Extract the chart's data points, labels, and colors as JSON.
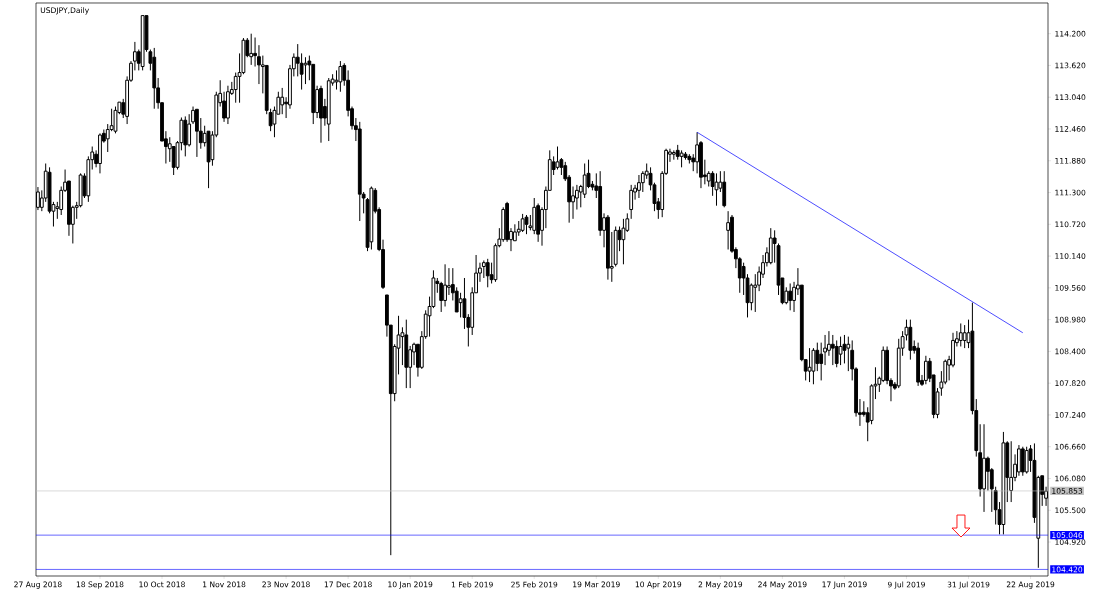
{
  "chart_data": {
    "type": "candlestick",
    "title": "USDJPY,Daily",
    "categories": [
      "27 Aug 2018",
      null,
      null,
      null,
      null,
      null,
      null,
      null,
      null,
      null,
      null,
      null,
      null,
      null,
      null,
      null,
      "18 Sep 2018",
      null,
      null,
      null,
      null,
      null,
      null,
      null,
      null,
      null,
      null,
      null,
      null,
      null,
      null,
      null,
      "10 Oct 2018",
      null,
      null,
      null,
      null,
      null,
      null,
      null,
      null,
      null,
      null,
      null,
      null,
      null,
      null,
      null,
      "1 Nov 2018",
      null,
      null,
      null,
      null,
      null,
      null,
      null,
      null,
      null,
      null,
      null,
      null,
      null,
      null,
      null,
      "23 Nov 2018",
      null,
      null,
      null,
      null,
      null,
      null,
      null,
      null,
      null,
      null,
      null,
      null,
      null,
      null,
      null,
      "17 Dec 2018",
      null,
      null,
      null,
      null,
      null,
      null,
      null,
      null,
      null,
      null,
      null,
      null,
      null,
      null,
      null,
      "10 Jan 2019",
      null,
      null,
      null,
      null,
      null,
      null,
      null,
      null,
      null,
      null,
      null,
      null,
      null,
      null,
      null,
      "1 Feb 2019",
      null,
      null,
      null,
      null,
      null,
      null,
      null,
      null,
      null,
      null,
      null,
      null,
      null,
      null,
      null,
      "25 Feb 2019",
      null,
      null,
      null,
      null,
      null,
      null,
      null,
      null,
      null,
      null,
      null,
      null,
      null,
      null,
      null,
      "19 Mar 2019",
      null,
      null,
      null,
      null,
      null,
      null,
      null,
      null,
      null,
      null,
      null,
      null,
      null,
      null,
      null,
      "10 Apr 2019",
      null,
      null,
      null,
      null,
      null,
      null,
      null,
      null,
      null,
      null,
      null,
      null,
      null,
      null,
      null,
      "2 May 2019",
      null,
      null,
      null,
      null,
      null,
      null,
      null,
      null,
      null,
      null,
      null,
      null,
      null,
      null,
      null,
      "24 May 2019",
      null,
      null,
      null,
      null,
      null,
      null,
      null,
      null,
      null,
      null,
      null,
      null,
      null,
      null,
      null,
      "17 Jun 2019",
      null,
      null,
      null,
      null,
      null,
      null,
      null,
      null,
      null,
      null,
      null,
      null,
      null,
      null,
      null,
      "9 Jul 2019",
      null,
      null,
      null,
      null,
      null,
      null,
      null,
      null,
      null,
      null,
      null,
      null,
      null,
      null,
      null,
      "31 Jul 2019",
      null,
      null,
      null,
      null,
      null,
      null,
      null,
      null,
      null,
      null,
      null,
      null,
      null,
      null,
      null,
      "22 Aug 2019",
      null,
      null,
      null,
      null
    ],
    "ohlc": [
      [
        111.03,
        111.4,
        110.98,
        111.31
      ],
      [
        111.03,
        111.34,
        110.96,
        111.2
      ],
      [
        111.2,
        111.83,
        111.13,
        111.69
      ],
      [
        111.67,
        111.76,
        110.92,
        110.96
      ],
      [
        110.96,
        111.13,
        110.68,
        111.08
      ],
      [
        111.01,
        111.13,
        110.82,
        111.04
      ],
      [
        110.99,
        111.41,
        110.89,
        111.34
      ],
      [
        111.34,
        111.72,
        111.31,
        111.49
      ],
      [
        111.51,
        111.51,
        110.51,
        110.72
      ],
      [
        110.72,
        111.06,
        110.37,
        111.03
      ],
      [
        111.03,
        111.13,
        110.82,
        111.06
      ],
      [
        111.06,
        111.65,
        111.03,
        111.62
      ],
      [
        111.6,
        111.65,
        111.2,
        111.24
      ],
      [
        111.24,
        111.96,
        111.13,
        111.9
      ],
      [
        111.9,
        112.14,
        111.72,
        112.04
      ],
      [
        112.0,
        112.07,
        111.76,
        111.83
      ],
      [
        111.83,
        112.38,
        111.65,
        112.35
      ],
      [
        112.38,
        112.45,
        112.21,
        112.24
      ],
      [
        112.28,
        112.55,
        112.04,
        112.45
      ],
      [
        112.45,
        112.83,
        112.42,
        112.52
      ],
      [
        112.42,
        112.87,
        112.38,
        112.8
      ],
      [
        112.76,
        112.95,
        112.73,
        112.95
      ],
      [
        112.94,
        113.01,
        112.66,
        112.73
      ],
      [
        112.69,
        113.42,
        112.55,
        113.35
      ],
      [
        113.35,
        113.7,
        113.32,
        113.66
      ],
      [
        113.7,
        114.05,
        113.53,
        113.87
      ],
      [
        113.87,
        113.91,
        113.53,
        113.66
      ],
      [
        113.6,
        114.53,
        113.53,
        114.53
      ],
      [
        114.53,
        114.53,
        113.87,
        113.91
      ],
      [
        113.87,
        113.91,
        113.53,
        113.66
      ],
      [
        113.77,
        113.94,
        112.83,
        113.21
      ],
      [
        113.21,
        113.39,
        112.83,
        112.94
      ],
      [
        112.94,
        112.94,
        112.24,
        112.24
      ],
      [
        112.28,
        112.42,
        111.83,
        112.14
      ],
      [
        112.1,
        112.31,
        111.86,
        112.19
      ],
      [
        112.14,
        112.14,
        111.62,
        111.76
      ],
      [
        111.76,
        112.24,
        111.72,
        112.21
      ],
      [
        112.21,
        112.67,
        112.07,
        112.62
      ],
      [
        112.62,
        112.69,
        111.96,
        112.17
      ],
      [
        112.17,
        112.73,
        112.14,
        112.55
      ],
      [
        112.59,
        112.87,
        112.55,
        112.8
      ],
      [
        112.82,
        112.82,
        111.95,
        112.42
      ],
      [
        112.42,
        112.66,
        112.1,
        112.21
      ],
      [
        112.21,
        112.52,
        112.14,
        112.38
      ],
      [
        112.42,
        112.42,
        111.38,
        111.86
      ],
      [
        111.9,
        112.42,
        111.79,
        112.35
      ],
      [
        112.35,
        113.14,
        112.31,
        113.08
      ],
      [
        112.94,
        113.35,
        112.87,
        113.11
      ],
      [
        112.97,
        113.14,
        112.59,
        112.66
      ],
      [
        112.66,
        113.25,
        112.55,
        113.14
      ],
      [
        113.11,
        113.32,
        113.08,
        113.18
      ],
      [
        113.18,
        113.49,
        112.94,
        113.42
      ],
      [
        113.42,
        113.84,
        112.94,
        113.49
      ],
      [
        113.49,
        114.12,
        113.46,
        114.08
      ],
      [
        114.08,
        114.12,
        113.77,
        113.8
      ],
      [
        113.78,
        114.2,
        113.63,
        113.84
      ],
      [
        113.84,
        114.13,
        113.6,
        113.8
      ],
      [
        113.78,
        113.99,
        113.28,
        113.63
      ],
      [
        113.6,
        113.8,
        113.11,
        113.63
      ],
      [
        113.62,
        113.62,
        112.73,
        112.8
      ],
      [
        112.76,
        112.83,
        112.42,
        112.52
      ],
      [
        112.55,
        112.87,
        112.31,
        112.8
      ],
      [
        112.73,
        113.14,
        112.73,
        113.04
      ],
      [
        112.9,
        113.21,
        112.73,
        113.04
      ],
      [
        112.95,
        113.04,
        112.66,
        112.92
      ],
      [
        112.9,
        113.63,
        112.83,
        113.56
      ],
      [
        113.56,
        113.84,
        113.42,
        113.77
      ],
      [
        113.77,
        114.01,
        113.42,
        113.66
      ],
      [
        113.66,
        113.84,
        113.18,
        113.46
      ],
      [
        113.63,
        113.77,
        113.28,
        113.66
      ],
      [
        113.7,
        113.8,
        113.35,
        113.63
      ],
      [
        113.64,
        113.64,
        112.55,
        112.76
      ],
      [
        112.76,
        113.25,
        112.66,
        113.18
      ],
      [
        113.2,
        113.25,
        112.21,
        112.66
      ],
      [
        112.87,
        113.01,
        112.52,
        112.66
      ],
      [
        112.55,
        113.39,
        112.24,
        113.34
      ],
      [
        113.3,
        113.46,
        113.25,
        113.37
      ],
      [
        113.32,
        113.53,
        113.18,
        113.35
      ],
      [
        113.32,
        113.7,
        113.14,
        113.6
      ],
      [
        113.62,
        113.66,
        113.25,
        113.35
      ],
      [
        113.35,
        113.53,
        112.69,
        112.8
      ],
      [
        112.83,
        112.87,
        112.45,
        112.52
      ],
      [
        112.52,
        112.66,
        112.24,
        112.45
      ],
      [
        112.46,
        112.59,
        110.78,
        111.27
      ],
      [
        111.27,
        111.31,
        110.92,
        111.2
      ],
      [
        111.17,
        111.2,
        110.23,
        110.3
      ],
      [
        110.4,
        111.41,
        110.26,
        111.38
      ],
      [
        111.34,
        111.38,
        110.92,
        110.96
      ],
      [
        110.99,
        111.03,
        110.23,
        110.26
      ],
      [
        110.26,
        110.44,
        109.54,
        109.57
      ],
      [
        109.43,
        109.43,
        108.67,
        108.88
      ],
      [
        108.88,
        108.88,
        104.68,
        107.63
      ],
      [
        107.63,
        108.53,
        107.49,
        108.49
      ],
      [
        108.46,
        109.05,
        107.98,
        108.7
      ],
      [
        108.67,
        108.84,
        108.15,
        108.74
      ],
      [
        108.7,
        108.98,
        107.73,
        108.11
      ],
      [
        108.11,
        108.5,
        107.73,
        108.43
      ],
      [
        108.39,
        108.56,
        108.15,
        108.53
      ],
      [
        108.53,
        108.53,
        107.94,
        108.11
      ],
      [
        108.11,
        108.77,
        108.08,
        108.67
      ],
      [
        108.67,
        109.15,
        108.63,
        109.08
      ],
      [
        109.05,
        109.4,
        108.67,
        109.22
      ],
      [
        109.22,
        109.88,
        109.19,
        109.74
      ],
      [
        109.68,
        109.74,
        109.47,
        109.64
      ],
      [
        109.64,
        109.67,
        109.12,
        109.33
      ],
      [
        109.33,
        109.99,
        109.22,
        109.61
      ],
      [
        109.57,
        109.92,
        109.43,
        109.6
      ],
      [
        109.62,
        109.92,
        109.33,
        109.47
      ],
      [
        109.5,
        109.57,
        109.12,
        109.12
      ],
      [
        109.29,
        109.47,
        109.02,
        109.36
      ],
      [
        109.36,
        109.74,
        108.81,
        109.02
      ],
      [
        109.02,
        109.08,
        108.49,
        108.84
      ],
      [
        108.84,
        109.57,
        108.7,
        109.47
      ],
      [
        109.47,
        110.16,
        109.47,
        109.83
      ],
      [
        109.83,
        110.02,
        109.67,
        109.92
      ],
      [
        109.95,
        110.06,
        109.74,
        110.02
      ],
      [
        110.02,
        110.09,
        109.57,
        109.78
      ],
      [
        109.8,
        110.02,
        109.64,
        109.71
      ],
      [
        109.71,
        110.37,
        109.67,
        110.33
      ],
      [
        110.33,
        110.65,
        110.3,
        110.45
      ],
      [
        110.44,
        111.03,
        110.4,
        110.99
      ],
      [
        111.1,
        111.13,
        110.4,
        110.44
      ],
      [
        110.44,
        110.65,
        110.23,
        110.59
      ],
      [
        110.42,
        110.72,
        110.42,
        110.58
      ],
      [
        110.58,
        110.78,
        110.51,
        110.63
      ],
      [
        110.61,
        110.91,
        110.58,
        110.82
      ],
      [
        110.85,
        110.89,
        110.54,
        110.72
      ],
      [
        110.66,
        110.89,
        110.61,
        110.69
      ],
      [
        110.61,
        111.2,
        110.54,
        111.03
      ],
      [
        111.06,
        111.1,
        110.4,
        110.54
      ],
      [
        110.61,
        111.03,
        110.33,
        110.99
      ],
      [
        110.99,
        111.41,
        110.65,
        111.34
      ],
      [
        111.34,
        112.07,
        111.34,
        111.9
      ],
      [
        111.86,
        111.96,
        111.62,
        111.72
      ],
      [
        111.76,
        112.14,
        111.72,
        111.86
      ],
      [
        111.9,
        111.93,
        111.62,
        111.76
      ],
      [
        111.79,
        111.86,
        111.51,
        111.55
      ],
      [
        111.58,
        111.62,
        110.75,
        111.13
      ],
      [
        111.13,
        111.41,
        110.82,
        111.24
      ],
      [
        111.2,
        111.44,
        110.99,
        111.34
      ],
      [
        111.31,
        111.44,
        111.03,
        111.41
      ],
      [
        111.27,
        111.83,
        111.2,
        111.62
      ],
      [
        111.65,
        111.9,
        111.38,
        111.41
      ],
      [
        111.45,
        111.51,
        111.34,
        111.4
      ],
      [
        111.42,
        111.65,
        111.2,
        111.34
      ],
      [
        111.41,
        111.69,
        110.51,
        110.61
      ],
      [
        110.61,
        110.92,
        110.3,
        110.84
      ],
      [
        110.85,
        110.89,
        109.71,
        109.92
      ],
      [
        109.92,
        110.58,
        109.67,
        109.95
      ],
      [
        109.99,
        110.68,
        109.95,
        110.61
      ],
      [
        110.61,
        110.68,
        110.23,
        110.44
      ],
      [
        110.44,
        110.82,
        109.99,
        110.65
      ],
      [
        110.61,
        110.92,
        110.58,
        110.82
      ],
      [
        110.99,
        111.44,
        110.82,
        111.34
      ],
      [
        111.31,
        111.44,
        111.17,
        111.38
      ],
      [
        111.34,
        111.62,
        111.2,
        111.48
      ],
      [
        111.48,
        111.69,
        111.31,
        111.65
      ],
      [
        111.62,
        111.83,
        111.55,
        111.69
      ],
      [
        111.65,
        111.76,
        111.34,
        111.44
      ],
      [
        111.44,
        111.48,
        110.96,
        111.1
      ],
      [
        111.13,
        111.2,
        110.82,
        110.99
      ],
      [
        110.99,
        111.69,
        110.85,
        111.65
      ],
      [
        111.65,
        112.1,
        111.62,
        112.07
      ],
      [
        112.0,
        112.1,
        111.86,
        112.04
      ],
      [
        112.0,
        112.07,
        111.9,
        112.03
      ],
      [
        112.07,
        112.17,
        111.9,
        111.96
      ],
      [
        111.96,
        112.07,
        111.76,
        112.02
      ],
      [
        112.0,
        112.04,
        111.9,
        111.94
      ],
      [
        111.96,
        112.0,
        111.83,
        111.9
      ],
      [
        111.93,
        112.0,
        111.69,
        111.86
      ],
      [
        111.86,
        112.4,
        111.65,
        112.17
      ],
      [
        112.21,
        112.24,
        111.38,
        111.58
      ],
      [
        111.62,
        111.9,
        111.45,
        111.59
      ],
      [
        111.51,
        111.69,
        111.41,
        111.65
      ],
      [
        111.65,
        111.69,
        111.24,
        111.41
      ],
      [
        111.35,
        111.65,
        111.06,
        111.49
      ],
      [
        111.38,
        111.69,
        111.31,
        111.49
      ],
      [
        111.49,
        111.69,
        111.03,
        111.06
      ],
      [
        110.61,
        110.96,
        110.26,
        110.75
      ],
      [
        110.85,
        110.89,
        110.2,
        110.23
      ],
      [
        110.26,
        110.3,
        109.92,
        110.09
      ],
      [
        110.09,
        110.12,
        109.47,
        109.74
      ],
      [
        109.95,
        110.02,
        109.43,
        109.74
      ],
      [
        109.74,
        109.81,
        109.02,
        109.29
      ],
      [
        109.29,
        109.64,
        109.15,
        109.61
      ],
      [
        109.57,
        109.81,
        109.12,
        109.61
      ],
      [
        109.61,
        109.95,
        109.5,
        109.85
      ],
      [
        109.81,
        110.16,
        109.74,
        110.02
      ],
      [
        110.02,
        110.3,
        109.95,
        110.2
      ],
      [
        110.02,
        110.65,
        109.99,
        110.47
      ],
      [
        110.47,
        110.61,
        110.02,
        110.37
      ],
      [
        110.33,
        110.37,
        109.43,
        109.61
      ],
      [
        109.74,
        109.74,
        109.26,
        109.29
      ],
      [
        109.29,
        109.57,
        109.26,
        109.5
      ],
      [
        109.5,
        109.64,
        109.15,
        109.33
      ],
      [
        109.33,
        109.67,
        109.12,
        109.57
      ],
      [
        109.54,
        109.92,
        109.43,
        109.61
      ],
      [
        109.61,
        109.61,
        108.22,
        108.25
      ],
      [
        108.25,
        108.25,
        107.87,
        108.04
      ],
      [
        108.04,
        108.46,
        107.84,
        108.11
      ],
      [
        108.04,
        108.46,
        107.8,
        108.42
      ],
      [
        108.42,
        108.56,
        108.04,
        108.18
      ],
      [
        108.35,
        108.56,
        107.87,
        108.18
      ],
      [
        108.39,
        108.7,
        108.15,
        108.46
      ],
      [
        108.42,
        108.77,
        108.32,
        108.53
      ],
      [
        108.53,
        108.7,
        108.15,
        108.46
      ],
      [
        108.49,
        108.6,
        108.11,
        108.18
      ],
      [
        108.35,
        108.67,
        108.15,
        108.49
      ],
      [
        108.53,
        108.7,
        108.18,
        108.42
      ],
      [
        108.46,
        108.67,
        108.04,
        108.53
      ],
      [
        108.42,
        108.6,
        107.87,
        108.08
      ],
      [
        108.08,
        108.11,
        107.21,
        107.28
      ],
      [
        107.28,
        107.53,
        107.04,
        107.25
      ],
      [
        107.29,
        107.49,
        107.21,
        107.25
      ],
      [
        107.28,
        107.38,
        106.76,
        107.11
      ],
      [
        107.14,
        107.8,
        107.07,
        107.77
      ],
      [
        107.77,
        108.11,
        107.53,
        107.8
      ],
      [
        107.8,
        107.94,
        107.66,
        107.91
      ],
      [
        107.87,
        108.49,
        107.84,
        108.42
      ],
      [
        108.42,
        108.49,
        107.8,
        107.87
      ],
      [
        107.87,
        107.91,
        107.49,
        107.77
      ],
      [
        107.8,
        107.84,
        107.7,
        107.73
      ],
      [
        107.77,
        108.63,
        107.73,
        108.46
      ],
      [
        108.46,
        108.77,
        108.32,
        108.67
      ],
      [
        108.7,
        108.98,
        108.6,
        108.84
      ],
      [
        108.84,
        108.98,
        108.25,
        108.42
      ],
      [
        108.49,
        108.6,
        108.36,
        108.42
      ],
      [
        108.46,
        108.56,
        107.77,
        107.84
      ],
      [
        107.87,
        107.97,
        107.77,
        107.8
      ],
      [
        107.87,
        108.32,
        107.8,
        108.22
      ],
      [
        108.22,
        108.28,
        107.84,
        107.91
      ],
      [
        107.97,
        107.97,
        107.18,
        107.25
      ],
      [
        107.25,
        107.73,
        107.18,
        107.66
      ],
      [
        107.73,
        108.04,
        107.59,
        107.84
      ],
      [
        107.84,
        108.25,
        107.8,
        108.22
      ],
      [
        108.15,
        108.32,
        107.87,
        108.25
      ],
      [
        108.15,
        108.74,
        108.11,
        108.6
      ],
      [
        108.56,
        108.77,
        108.49,
        108.63
      ],
      [
        108.6,
        108.91,
        108.49,
        108.74
      ],
      [
        108.6,
        108.88,
        108.46,
        108.74
      ],
      [
        108.56,
        108.98,
        108.46,
        108.74
      ],
      [
        108.77,
        109.29,
        107.25,
        107.32
      ],
      [
        107.32,
        107.53,
        106.48,
        106.59
      ],
      [
        106.55,
        107.07,
        105.75,
        105.89
      ],
      [
        105.89,
        107.07,
        105.47,
        106.45
      ],
      [
        106.45,
        106.48,
        105.86,
        106.21
      ],
      [
        106.24,
        106.27,
        105.47,
        105.89
      ],
      [
        105.86,
        105.93,
        105.24,
        105.51
      ],
      [
        105.51,
        105.65,
        105.06,
        105.24
      ],
      [
        105.24,
        106.93,
        105.06,
        106.73
      ],
      [
        106.73,
        106.76,
        105.65,
        106.1
      ],
      [
        105.86,
        106.76,
        105.65,
        106.1
      ],
      [
        106.1,
        106.52,
        106.03,
        106.34
      ],
      [
        106.2,
        106.69,
        106.13,
        106.62
      ],
      [
        106.62,
        106.66,
        106.13,
        106.2
      ],
      [
        106.2,
        106.66,
        106.17,
        106.59
      ],
      [
        106.62,
        106.69,
        106.2,
        106.41
      ],
      [
        106.41,
        106.72,
        105.27,
        105.37
      ],
      [
        104.99,
        106.13,
        104.45,
        106.1
      ],
      [
        106.13,
        106.13,
        105.58,
        105.79
      ],
      [
        105.72,
        105.93,
        105.58,
        105.85
      ]
    ],
    "series": [
      {
        "type": "line",
        "color": "#0000ff",
        "values": [
          null,
          null,
          null,
          null,
          null,
          null,
          null,
          null,
          null,
          null,
          null,
          null,
          null,
          null,
          null,
          null,
          null,
          null,
          null,
          null,
          null,
          null,
          null,
          null,
          null,
          null,
          null,
          null,
          null,
          null,
          null,
          null,
          null,
          null,
          null,
          null,
          null,
          null,
          null,
          null,
          null,
          null,
          null,
          null,
          null,
          null,
          null,
          null,
          null,
          null,
          null,
          null,
          null,
          null,
          null,
          null,
          null,
          null,
          null,
          null,
          null,
          null,
          null,
          null,
          null,
          null,
          null,
          null,
          null,
          null,
          null,
          null,
          null,
          null,
          null,
          null,
          null,
          null,
          null,
          null,
          null,
          null,
          null,
          null,
          null,
          null,
          null,
          null,
          null,
          null,
          null,
          null,
          null,
          null,
          null,
          null,
          null,
          null,
          null,
          null,
          null,
          null,
          null,
          null,
          null,
          null,
          null,
          null,
          null,
          null,
          null,
          null,
          null,
          null,
          null,
          null,
          null,
          null,
          null,
          null,
          null,
          null,
          null,
          null,
          null,
          null,
          null,
          null,
          null,
          null,
          null,
          null,
          null,
          null,
          null,
          null,
          null,
          null,
          null,
          null,
          null,
          null,
          null,
          null,
          null,
          null,
          null,
          null,
          null,
          null,
          null,
          null,
          null,
          null,
          null,
          null,
          null,
          null,
          null,
          null,
          null,
          null,
          null,
          null,
          null,
          null,
          null,
          null,
          null,
          null,
          112.4,
          null,
          null,
          null,
          null,
          null,
          null,
          null,
          null,
          null,
          null,
          null,
          null,
          null,
          null,
          null,
          null,
          null,
          null,
          null,
          null,
          null,
          null,
          null,
          null,
          null,
          null,
          null,
          null,
          null,
          null,
          null,
          null,
          null,
          null,
          null,
          null,
          null,
          null,
          null,
          null,
          null,
          null,
          null,
          null,
          null,
          null,
          null,
          null,
          null,
          null,
          null,
          null,
          null,
          null,
          null,
          null,
          null,
          null,
          null,
          null,
          null,
          null,
          null,
          null,
          null,
          null,
          null,
          null,
          null,
          null,
          null,
          null,
          null,
          null,
          null,
          null,
          null,
          null,
          null,
          null,
          null,
          null,
          null,
          108.74,
          null,
          null,
          null,
          null,
          null,
          null
        ]
      }
    ],
    "ylim": [
      104.3,
      114.76
    ],
    "yticks": [
      {
        "value": 104.92,
        "label": "104.920"
      },
      {
        "value": 105.5,
        "label": "105.500"
      },
      {
        "value": 106.08,
        "label": "106.080"
      },
      {
        "value": 106.66,
        "label": "106.660"
      },
      {
        "value": 107.24,
        "label": "107.240"
      },
      {
        "value": 107.82,
        "label": "107.820"
      },
      {
        "value": 108.4,
        "label": "108.400"
      },
      {
        "value": 108.98,
        "label": "108.980"
      },
      {
        "value": 109.56,
        "label": "109.560"
      },
      {
        "value": 110.14,
        "label": "110.140"
      },
      {
        "value": 110.72,
        "label": "110.720"
      },
      {
        "value": 111.3,
        "label": "111.300"
      },
      {
        "value": 111.88,
        "label": "111.880"
      },
      {
        "value": 112.46,
        "label": "112.460"
      },
      {
        "value": 113.04,
        "label": "113.040"
      },
      {
        "value": 113.62,
        "label": "113.620"
      },
      {
        "value": 114.2,
        "label": "114.200"
      }
    ],
    "ref_lines": [
      {
        "axis": "y",
        "value": 105.853,
        "label": "105.853",
        "color": "#c0c0c0"
      },
      {
        "axis": "y",
        "value": 105.046,
        "label": "105.046",
        "color": "#0000ff"
      },
      {
        "axis": "y",
        "value": 104.42,
        "label": "104.420",
        "color": "#0000ff"
      }
    ]
  }
}
